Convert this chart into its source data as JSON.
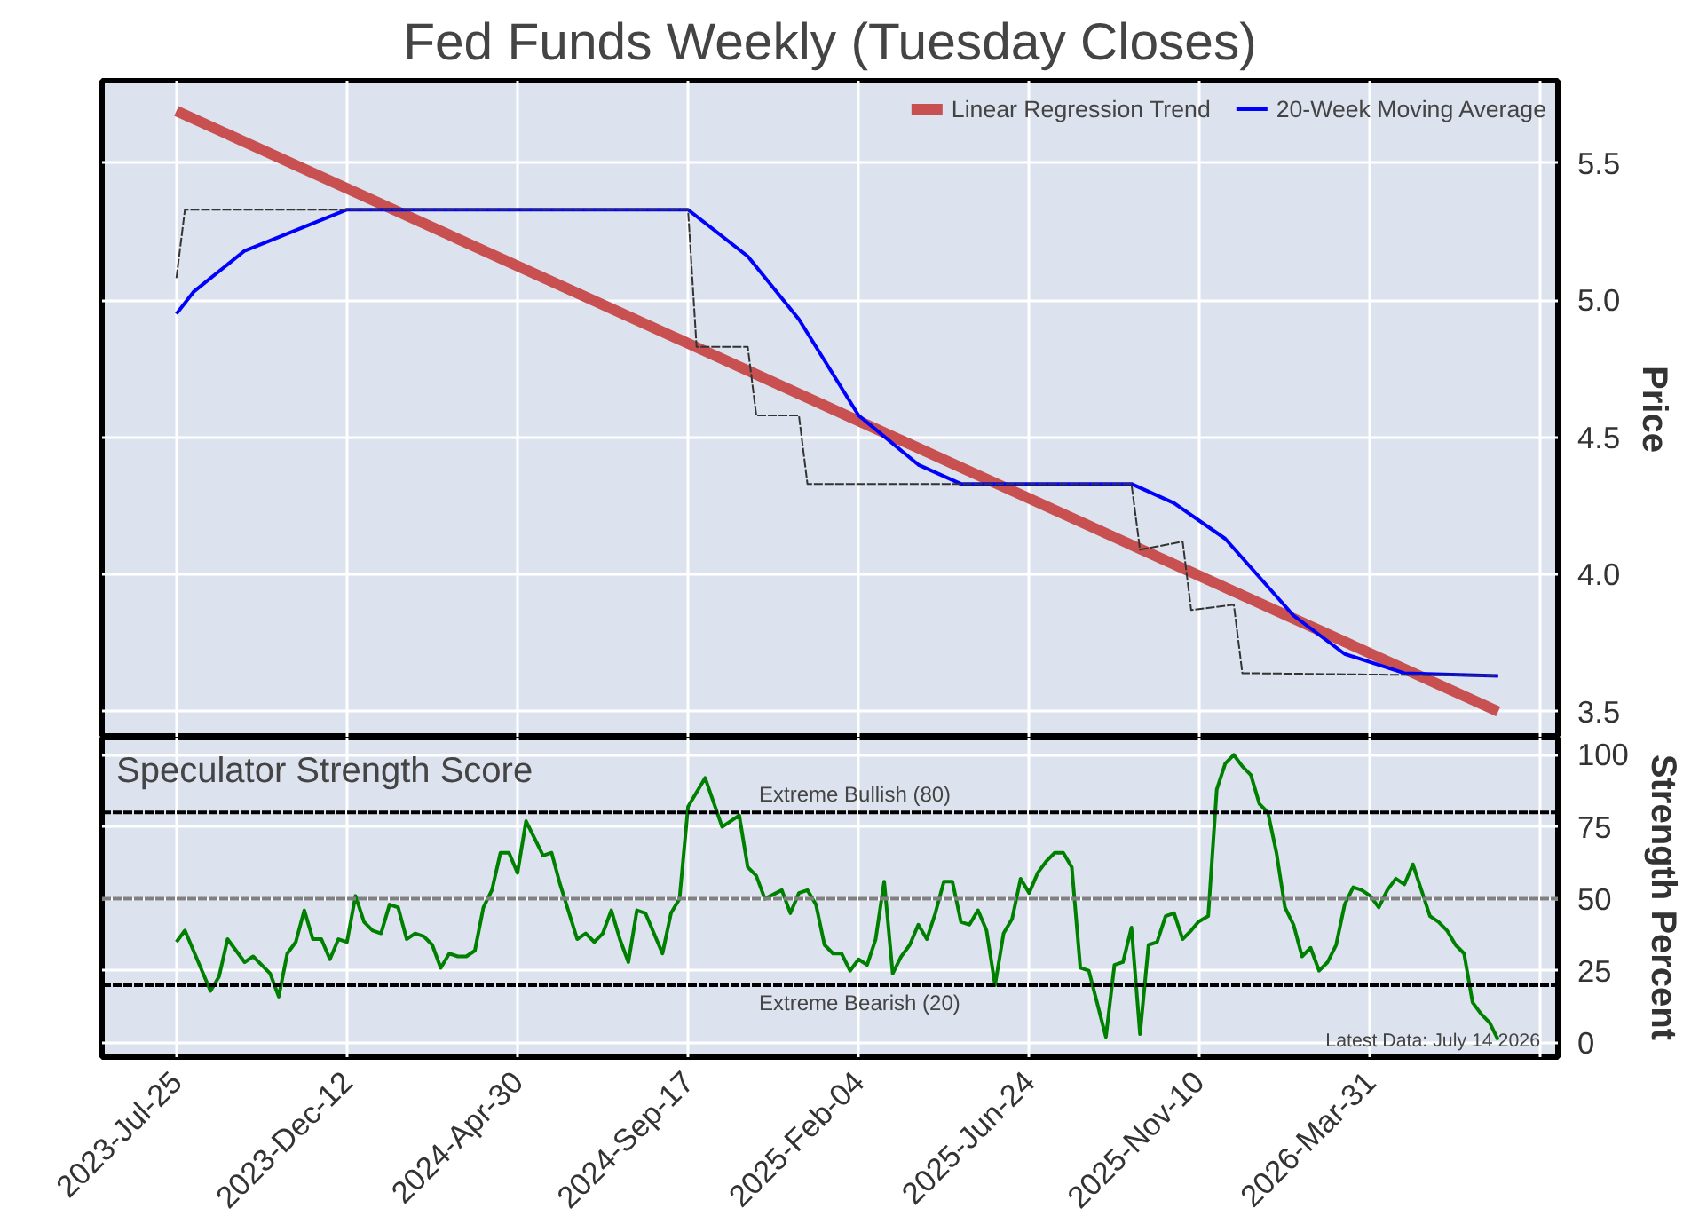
{
  "chart_data": [
    {
      "type": "line",
      "title": "Fed Funds Weekly (Tuesday Closes)",
      "ylabel": "Price",
      "series": [
        {
          "color": "#333333",
          "line_style": "dashed",
          "x": [
            "2023-07-25",
            "2023-08-01",
            "2024-09-17",
            "2024-09-24",
            "2024-11-05",
            "2024-11-12",
            "2024-12-17",
            "2024-12-24",
            "2025-09-16",
            "2025-09-23",
            "2025-10-28",
            "2025-11-04",
            "2025-12-09",
            "2025-12-16",
            "2026-07-14"
          ],
          "values": [
            5.08,
            5.33,
            5.33,
            4.83,
            4.83,
            4.58,
            4.58,
            4.33,
            4.33,
            4.09,
            4.12,
            3.87,
            3.89,
            3.64,
            3.63
          ]
        },
        {
          "name": "Linear Regression Trend",
          "color": "#c85050",
          "x": [
            "2023-07-25",
            "2026-07-14"
          ],
          "values": [
            5.69,
            3.5
          ]
        },
        {
          "name": "20-Week Moving Average",
          "color": "#0000ff",
          "x": [
            "2023-07-25",
            "2023-08-08",
            "2023-09-19",
            "2023-12-12",
            "2024-09-17",
            "2024-11-05",
            "2024-12-17",
            "2025-02-04",
            "2025-03-25",
            "2025-04-29",
            "2025-09-16",
            "2025-10-21",
            "2025-12-02",
            "2026-01-27",
            "2026-03-10",
            "2026-04-28",
            "2026-07-14"
          ],
          "values": [
            4.95,
            5.03,
            5.18,
            5.33,
            5.33,
            5.16,
            4.93,
            4.58,
            4.4,
            4.33,
            4.33,
            4.26,
            4.13,
            3.85,
            3.71,
            3.64,
            3.63
          ]
        }
      ],
      "xlim": [
        "2023-05-25",
        "2026-09-01"
      ],
      "xticks": [
        {
          "value": "2023-07-25",
          "label": null
        },
        {
          "value": "2023-12-12",
          "label": null
        },
        {
          "value": "2024-04-30",
          "label": null
        },
        {
          "value": "2024-09-17",
          "label": null
        },
        {
          "value": "2025-02-04",
          "label": null
        },
        {
          "value": "2025-06-24",
          "label": null
        },
        {
          "value": "2025-11-10",
          "label": null
        },
        {
          "value": "2026-03-31",
          "label": null
        },
        {
          "value": "2026-08-18",
          "label": null
        }
      ],
      "ylim": [
        3.405,
        5.8
      ],
      "yticks": [
        3.5,
        {
          "value": 4,
          "label": "4.0"
        },
        4.5,
        {
          "value": 5,
          "label": "5.0"
        },
        5.5
      ],
      "grid": true,
      "legend": "top right",
      "tick_labels": "y"
    },
    {
      "type": "line",
      "title": "Speculator Strength Score",
      "ylabel": "Strength Percent",
      "annotations": [
        "Latest Data: July 14 2026"
      ],
      "series": [
        {
          "color": "#008000",
          "x": [
            "2023-07-25",
            "2023-08-01",
            "2023-08-22",
            "2023-08-29",
            "2023-09-05",
            "2023-09-19",
            "2023-09-26",
            "2023-10-10",
            "2023-10-17",
            "2023-10-24",
            "2023-10-31",
            "2023-11-07",
            "2023-11-14",
            "2023-11-21",
            "2023-11-28",
            "2023-12-05",
            "2023-12-12",
            "2023-12-19",
            "2023-12-26",
            "2024-01-02",
            "2024-01-09",
            "2024-01-16",
            "2024-01-23",
            "2024-01-30",
            "2024-02-06",
            "2024-02-13",
            "2024-02-20",
            "2024-02-27",
            "2024-03-05",
            "2024-03-12",
            "2024-03-19",
            "2024-03-26",
            "2024-04-02",
            "2024-04-09",
            "2024-04-16",
            "2024-04-23",
            "2024-04-30",
            "2024-05-07",
            "2024-05-21",
            "2024-05-28",
            "2024-06-04",
            "2024-06-18",
            "2024-06-25",
            "2024-07-02",
            "2024-07-09",
            "2024-07-16",
            "2024-07-23",
            "2024-07-30",
            "2024-08-06",
            "2024-08-13",
            "2024-08-27",
            "2024-09-03",
            "2024-09-10",
            "2024-09-17",
            "2024-10-01",
            "2024-10-15",
            "2024-10-29",
            "2024-11-05",
            "2024-11-12",
            "2024-11-19",
            "2024-12-03",
            "2024-12-10",
            "2024-12-17",
            "2024-12-24",
            "2024-12-31",
            "2025-01-07",
            "2025-01-14",
            "2025-01-21",
            "2025-01-28",
            "2025-02-04",
            "2025-02-11",
            "2025-02-18",
            "2025-02-25",
            "2025-03-04",
            "2025-03-11",
            "2025-03-18",
            "2025-03-25",
            "2025-04-01",
            "2025-04-08",
            "2025-04-15",
            "2025-04-22",
            "2025-04-29",
            "2025-05-06",
            "2025-05-13",
            "2025-05-20",
            "2025-05-27",
            "2025-06-03",
            "2025-06-10",
            "2025-06-17",
            "2025-06-24",
            "2025-07-01",
            "2025-07-08",
            "2025-07-15",
            "2025-07-22",
            "2025-07-29",
            "2025-08-05",
            "2025-08-12",
            "2025-08-26",
            "2025-09-02",
            "2025-09-09",
            "2025-09-16",
            "2025-09-23",
            "2025-09-30",
            "2025-10-07",
            "2025-10-14",
            "2025-10-21",
            "2025-10-28",
            "2025-11-04",
            "2025-11-10",
            "2025-11-18",
            "2025-11-25",
            "2025-12-02",
            "2025-12-09",
            "2025-12-16",
            "2025-12-23",
            "2025-12-30",
            "2026-01-06",
            "2026-01-13",
            "2026-01-20",
            "2026-01-27",
            "2026-02-03",
            "2026-02-10",
            "2026-02-17",
            "2026-02-24",
            "2026-03-03",
            "2026-03-10",
            "2026-03-17",
            "2026-03-24",
            "2026-03-31",
            "2026-04-07",
            "2026-04-14",
            "2026-04-21",
            "2026-04-28",
            "2026-05-05",
            "2026-05-12",
            "2026-05-19",
            "2026-05-26",
            "2026-06-02",
            "2026-06-09",
            "2026-06-16",
            "2026-06-23",
            "2026-06-30",
            "2026-07-07",
            "2026-07-14"
          ],
          "values": [
            35,
            39,
            18,
            23,
            36,
            28,
            30,
            24,
            16,
            31,
            35,
            46,
            36,
            36,
            29,
            36,
            35,
            51,
            42,
            39,
            38,
            48,
            47,
            36,
            38,
            37,
            34,
            26,
            31,
            30,
            30,
            32,
            47,
            53,
            66,
            66,
            59,
            77,
            65,
            66,
            55,
            36,
            38,
            35,
            38,
            46,
            36,
            28,
            46,
            45,
            31,
            45,
            50,
            82,
            92,
            75,
            79,
            61,
            58,
            50,
            53,
            45,
            52,
            53,
            48,
            34,
            31,
            31,
            25,
            29,
            27,
            36,
            56,
            24,
            30,
            34,
            41,
            36,
            45,
            56,
            56,
            42,
            41,
            46,
            39,
            20,
            38,
            43,
            57,
            52,
            59,
            63,
            66,
            66,
            61,
            26,
            25,
            2,
            27,
            28,
            40,
            3,
            34,
            35,
            44,
            45,
            36,
            39,
            42,
            44,
            88,
            97,
            100,
            96,
            93,
            83,
            80,
            66,
            47,
            41,
            30,
            33,
            25,
            28,
            34,
            48,
            54,
            53,
            51,
            47,
            53,
            57,
            55,
            62,
            53,
            44,
            42,
            39,
            34,
            31,
            14,
            10,
            7,
            1
          ]
        }
      ],
      "xlim": [
        "2023-05-25",
        "2026-09-01"
      ],
      "xticks": [
        {
          "value": "2023-07-25",
          "label": "2023-Jul-25"
        },
        {
          "value": "2023-12-12",
          "label": "2023-Dec-12"
        },
        {
          "value": "2024-04-30",
          "label": "2024-Apr-30"
        },
        {
          "value": "2024-09-17",
          "label": "2024-Sep-17"
        },
        {
          "value": "2025-02-04",
          "label": "2025-Feb-04"
        },
        {
          "value": "2025-06-24",
          "label": "2025-Jun-24"
        },
        {
          "value": "2025-11-10",
          "label": "2025-Nov-10"
        },
        {
          "value": "2026-03-31",
          "label": "2026-Mar-31"
        },
        {
          "value": "2026-08-18",
          "label": null
        }
      ],
      "ylim": [
        -5,
        106
      ],
      "yticks": [
        0,
        25,
        50,
        75,
        100
      ],
      "grid": true,
      "ref_lines": [
        {
          "axis": "y",
          "value": 80,
          "label": "Extreme Bullish (80)",
          "color": "#000000",
          "line_style": "dashed"
        },
        {
          "axis": "y",
          "value": 50,
          "label": null,
          "color": "#808080",
          "line_style": "dashed"
        },
        {
          "axis": "y",
          "value": 20,
          "label": "Extreme Bearish (20)",
          "color": "#000000",
          "line_style": "dashed"
        }
      ]
    }
  ]
}
